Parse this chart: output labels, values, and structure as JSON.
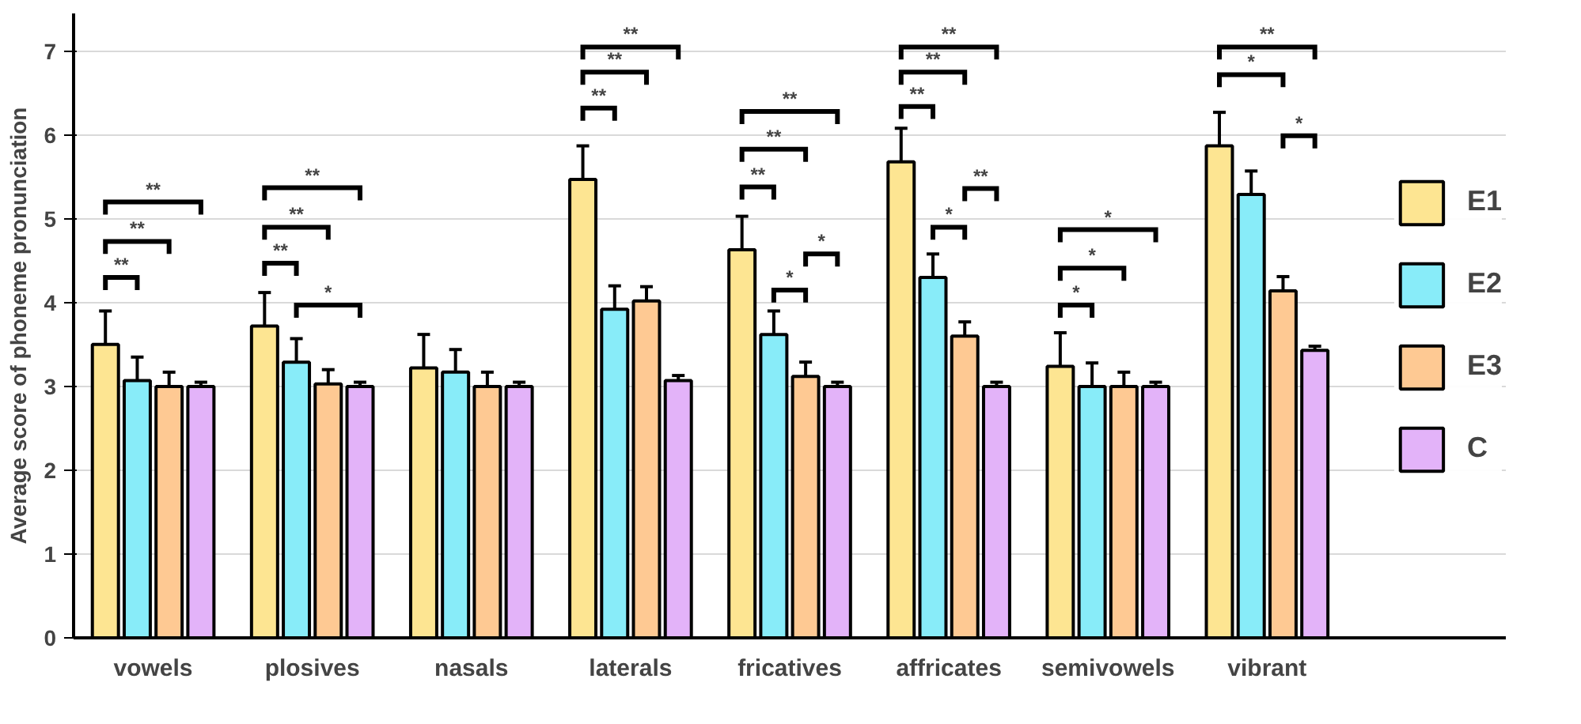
{
  "chart_data": {
    "type": "bar",
    "ylabel": "Average score of phoneme pronunciation",
    "categories": [
      "vowels",
      "plosives",
      "nasals",
      "laterals",
      "fricatives",
      "affricates",
      "semivowels",
      "vibrant"
    ],
    "series": [
      {
        "name": "E1",
        "color": "#fde592",
        "values": [
          3.5,
          3.72,
          3.22,
          5.47,
          4.63,
          5.68,
          3.24,
          5.87
        ],
        "errors": [
          0.4,
          0.4,
          0.4,
          0.4,
          0.4,
          0.4,
          0.4,
          0.4
        ]
      },
      {
        "name": "E2",
        "color": "#88ecf9",
        "values": [
          3.07,
          3.29,
          3.17,
          3.92,
          3.62,
          4.3,
          3.0,
          5.29
        ],
        "errors": [
          0.28,
          0.28,
          0.27,
          0.28,
          0.28,
          0.28,
          0.28,
          0.28
        ]
      },
      {
        "name": "E3",
        "color": "#fec993",
        "values": [
          3.0,
          3.03,
          3.0,
          4.02,
          3.12,
          3.6,
          3.0,
          4.14
        ],
        "errors": [
          0.17,
          0.17,
          0.17,
          0.17,
          0.17,
          0.17,
          0.17,
          0.17
        ]
      },
      {
        "name": "C",
        "color": "#e3b3f9",
        "values": [
          3.0,
          3.0,
          3.0,
          3.07,
          3.0,
          3.0,
          3.0,
          3.43
        ],
        "errors": [
          0.05,
          0.05,
          0.05,
          0.06,
          0.05,
          0.05,
          0.05,
          0.05
        ]
      }
    ],
    "ylim": [
      0,
      7.45
    ],
    "yticks": [
      0,
      1,
      2,
      3,
      4,
      5,
      6,
      7
    ],
    "grid": "y",
    "legend": "right",
    "annotations": [
      "**",
      "**",
      "**",
      "**",
      "**",
      "**",
      "*",
      "**",
      "**",
      "**",
      "**",
      "**",
      "**",
      "*",
      "*",
      "**",
      "**",
      "**",
      "**",
      "*",
      "*",
      "*",
      "*",
      "**",
      "*",
      "*"
    ]
  }
}
